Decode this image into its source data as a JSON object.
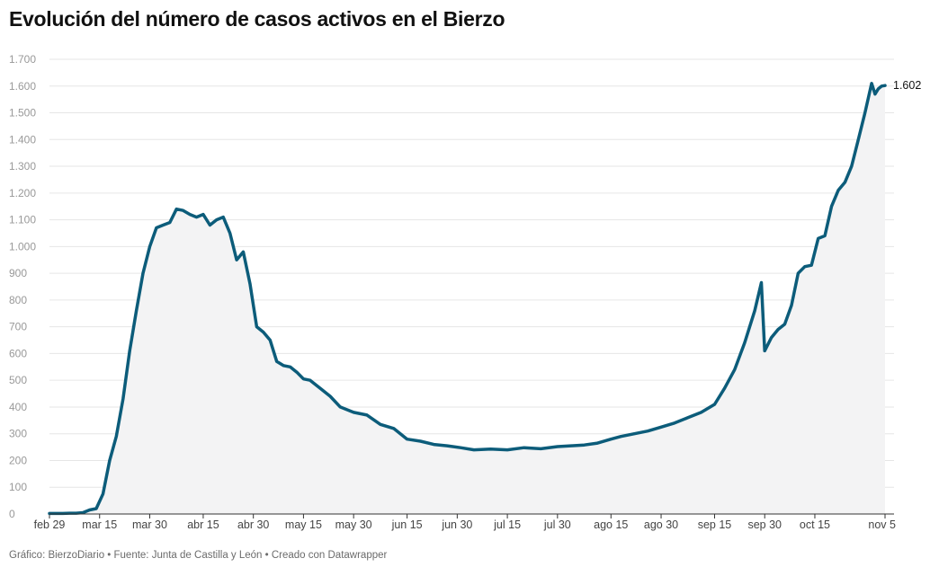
{
  "title": "Evolución del número de casos activos en el Bierzo",
  "footer": "Gráfico: BierzoDiario • Fuente: Junta de Castilla y León • Creado con Datawrapper",
  "colors": {
    "line": "#0c5c7a",
    "area": "#f3f3f4",
    "grid": "#e6e6e6",
    "axis": "#333333"
  },
  "chart_data": {
    "type": "area",
    "title": "Evolución del número de casos activos en el Bierzo",
    "xlabel": "",
    "ylabel": "",
    "ylim": [
      0,
      1700
    ],
    "yticks": [
      0,
      100,
      200,
      300,
      400,
      500,
      600,
      700,
      800,
      900,
      1000,
      1100,
      1200,
      1300,
      1400,
      1500,
      1600,
      1700
    ],
    "ytick_labels": [
      "0",
      "100",
      "200",
      "300",
      "400",
      "500",
      "600",
      "700",
      "800",
      "900",
      "1.000",
      "1.100",
      "1.200",
      "1.300",
      "1.400",
      "1.500",
      "1.600",
      "1.700"
    ],
    "xlim": [
      "2020-02-29",
      "2020-11-05"
    ],
    "xticks": [
      "2020-02-29",
      "2020-03-15",
      "2020-03-30",
      "2020-04-15",
      "2020-04-30",
      "2020-05-15",
      "2020-05-30",
      "2020-06-15",
      "2020-06-30",
      "2020-07-15",
      "2020-07-30",
      "2020-08-15",
      "2020-08-30",
      "2020-09-15",
      "2020-09-30",
      "2020-10-15",
      "2020-11-05"
    ],
    "xtick_labels": [
      "feb 29",
      "mar 15",
      "mar 30",
      "abr 15",
      "abr 30",
      "may 15",
      "may 30",
      "jun 15",
      "jun 30",
      "jul 15",
      "jul 30",
      "ago 15",
      "ago 30",
      "sep 15",
      "sep 30",
      "oct 15",
      "nov 5"
    ],
    "grid": true,
    "legend": "none",
    "last_value_label": "1.602",
    "series": [
      {
        "x": [
          "2020-02-29",
          "2020-03-02",
          "2020-03-04",
          "2020-03-06",
          "2020-03-08",
          "2020-03-10",
          "2020-03-12",
          "2020-03-14",
          "2020-03-16",
          "2020-03-18",
          "2020-03-20",
          "2020-03-22",
          "2020-03-24",
          "2020-03-26",
          "2020-03-28",
          "2020-03-30",
          "2020-04-01",
          "2020-04-03",
          "2020-04-05",
          "2020-04-07",
          "2020-04-09",
          "2020-04-11",
          "2020-04-13",
          "2020-04-15",
          "2020-04-17",
          "2020-04-19",
          "2020-04-21",
          "2020-04-23",
          "2020-04-25",
          "2020-04-27",
          "2020-04-29",
          "2020-05-01",
          "2020-05-03",
          "2020-05-05",
          "2020-05-07",
          "2020-05-09",
          "2020-05-11",
          "2020-05-13",
          "2020-05-15",
          "2020-05-17",
          "2020-05-20",
          "2020-05-23",
          "2020-05-26",
          "2020-05-30",
          "2020-06-03",
          "2020-06-07",
          "2020-06-11",
          "2020-06-15",
          "2020-06-19",
          "2020-06-23",
          "2020-06-27",
          "2020-07-01",
          "2020-07-05",
          "2020-07-10",
          "2020-07-15",
          "2020-07-20",
          "2020-07-25",
          "2020-07-30",
          "2020-08-03",
          "2020-08-07",
          "2020-08-11",
          "2020-08-15",
          "2020-08-18",
          "2020-08-22",
          "2020-08-26",
          "2020-08-30",
          "2020-09-03",
          "2020-09-07",
          "2020-09-11",
          "2020-09-15",
          "2020-09-18",
          "2020-09-21",
          "2020-09-24",
          "2020-09-27",
          "2020-09-29",
          "2020-09-30",
          "2020-10-02",
          "2020-10-04",
          "2020-10-06",
          "2020-10-08",
          "2020-10-10",
          "2020-10-12",
          "2020-10-14",
          "2020-10-16",
          "2020-10-18",
          "2020-10-20",
          "2020-10-22",
          "2020-10-24",
          "2020-10-26",
          "2020-10-28",
          "2020-10-30",
          "2020-11-01",
          "2020-11-02",
          "2020-11-03",
          "2020-11-04",
          "2020-11-05"
        ],
        "y": [
          2,
          2,
          2,
          3,
          3,
          5,
          15,
          20,
          75,
          200,
          290,
          430,
          610,
          760,
          900,
          1000,
          1070,
          1080,
          1090,
          1140,
          1135,
          1120,
          1110,
          1120,
          1080,
          1100,
          1110,
          1050,
          950,
          980,
          860,
          700,
          680,
          650,
          570,
          555,
          550,
          530,
          505,
          500,
          470,
          440,
          400,
          380,
          370,
          335,
          320,
          280,
          272,
          260,
          255,
          248,
          240,
          243,
          240,
          248,
          244,
          252,
          255,
          258,
          265,
          280,
          290,
          300,
          310,
          325,
          340,
          360,
          380,
          410,
          470,
          540,
          640,
          760,
          865,
          610,
          660,
          690,
          710,
          780,
          900,
          925,
          930,
          1030,
          1040,
          1150,
          1210,
          1240,
          1300,
          1400,
          1500,
          1610,
          1570,
          1590,
          1600,
          1602
        ]
      }
    ]
  }
}
